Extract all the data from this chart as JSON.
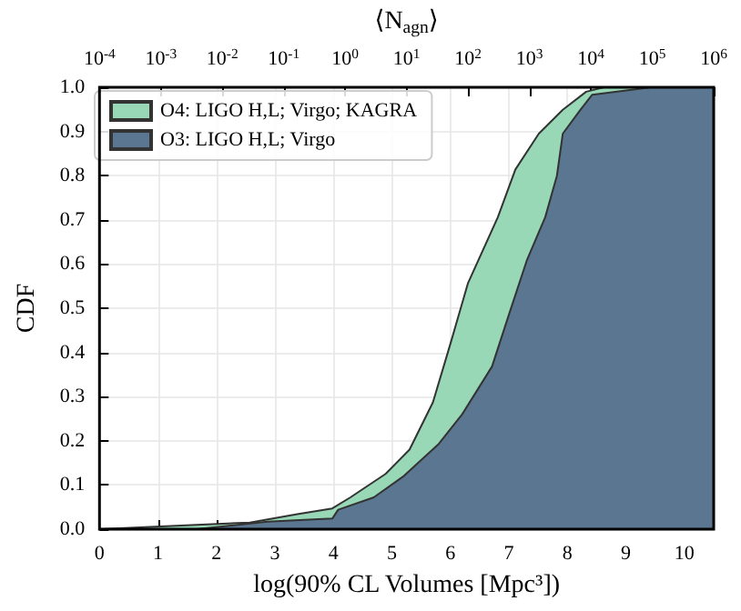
{
  "chart_data": {
    "type": "area",
    "xlabel": "log(90% CL Volumes [Mpc³])",
    "ylabel": "CDF",
    "x2label": "⟨N$_{agn}$⟩",
    "xlim": [
      0,
      10.5
    ],
    "xticks": [
      0,
      1,
      2,
      3,
      4,
      5,
      6,
      7,
      8,
      9,
      10
    ],
    "ylim": [
      0,
      1
    ],
    "yticks": [
      {
        "value": 0,
        "label": "0.0"
      },
      {
        "value": 0.1,
        "label": "0.1"
      },
      {
        "value": 0.2,
        "label": "0.2"
      },
      {
        "value": 0.3,
        "label": "0.3"
      },
      {
        "value": 0.4,
        "label": "0.4"
      },
      {
        "value": 0.5,
        "label": "0.5"
      },
      {
        "value": 0.6,
        "label": "0.6"
      },
      {
        "value": 0.7,
        "label": "0.7"
      },
      {
        "value": 0.8,
        "label": "0.8"
      },
      {
        "value": 0.9,
        "label": "0.9"
      },
      {
        "value": 1,
        "label": "1.0"
      }
    ],
    "log": "x2",
    "x2lim": [
      0.0001,
      1000000
    ],
    "x2ticks": [
      {
        "value": 0.0001,
        "label": "10$^{-4}$"
      },
      {
        "value": 0.001,
        "label": "10$^{-3}$"
      },
      {
        "value": 0.01,
        "label": "10$^{-2}$"
      },
      {
        "value": 0.1,
        "label": "10$^{-1}$"
      },
      {
        "value": 1,
        "label": "10$^{0}$"
      },
      {
        "value": 10,
        "label": "10$^{1}$"
      },
      {
        "value": 100,
        "label": "10$^{2}$"
      },
      {
        "value": 1000,
        "label": "10$^{3}$"
      },
      {
        "value": 10000,
        "label": "10$^{4}$"
      },
      {
        "value": 100000,
        "label": "10$^{5}$"
      },
      {
        "value": 1000000,
        "label": "10$^{6}$"
      }
    ],
    "grid": true,
    "legend": "top left",
    "line_style": "solid",
    "marker": "none",
    "series": [
      {
        "name": "O4: LIGO H,L; Virgo; KAGRA",
        "color": "#98d8b6",
        "x": [
          0,
          1.66,
          2.57,
          3.38,
          3.98,
          4.29,
          4.89,
          5.3,
          5.7,
          6.0,
          6.3,
          6.81,
          7.11,
          7.51,
          7.92,
          8.32,
          8.62,
          10.5
        ],
        "values": [
          0,
          0.01,
          0.015,
          0.034,
          0.047,
          0.072,
          0.125,
          0.18,
          0.287,
          0.42,
          0.557,
          0.706,
          0.814,
          0.895,
          0.949,
          0.99,
          1,
          1
        ]
      },
      {
        "name": "O3: LIGO H,L; Virgo",
        "color": "#5a7691",
        "x": [
          1.66,
          2.87,
          3.98,
          4.08,
          4.69,
          5.19,
          5.8,
          6.2,
          6.71,
          7.01,
          7.31,
          7.62,
          7.82,
          7.92,
          8.22,
          8.42,
          9.43,
          10.5
        ],
        "values": [
          0,
          0.017,
          0.024,
          0.044,
          0.072,
          0.119,
          0.193,
          0.26,
          0.368,
          0.49,
          0.61,
          0.706,
          0.8,
          0.895,
          0.949,
          0.983,
          1,
          1
        ]
      }
    ]
  }
}
